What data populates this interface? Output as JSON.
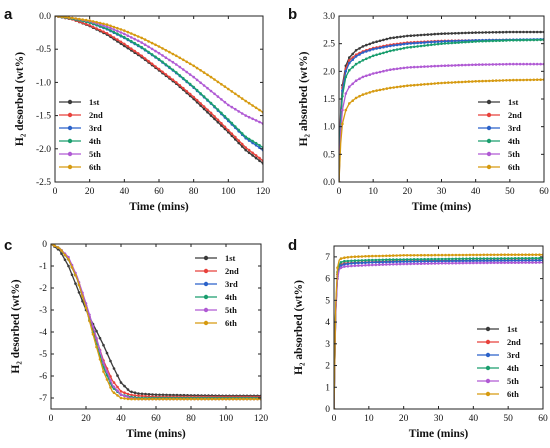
{
  "chart_data": [
    {
      "panel_label": "a",
      "type": "line",
      "xlabel": "Time (mins)",
      "ylabel": "H₂ desorbed (wt%)",
      "xlim": [
        0,
        120
      ],
      "ylim": [
        -2.5,
        0.0
      ],
      "xticks": [
        0,
        20,
        40,
        60,
        80,
        100,
        120
      ],
      "yticks": [
        0.0,
        -0.5,
        -1.0,
        -1.5,
        -2.0,
        -2.5
      ],
      "ytick_decimals": 1,
      "legend_position": "lower-left",
      "x": [
        0,
        10,
        20,
        30,
        40,
        50,
        60,
        70,
        80,
        90,
        100,
        110,
        120
      ],
      "series": [
        {
          "name": "1st",
          "color": "#3a3a3a",
          "values": [
            0,
            -0.05,
            -0.15,
            -0.28,
            -0.45,
            -0.62,
            -0.82,
            -1.02,
            -1.25,
            -1.5,
            -1.75,
            -2.02,
            -2.22
          ]
        },
        {
          "name": "2nd",
          "color": "#e8423c",
          "values": [
            0,
            -0.05,
            -0.14,
            -0.26,
            -0.42,
            -0.6,
            -0.8,
            -1.0,
            -1.22,
            -1.46,
            -1.72,
            -1.98,
            -2.18
          ]
        },
        {
          "name": "3rd",
          "color": "#2b62c9",
          "values": [
            0,
            -0.04,
            -0.1,
            -0.2,
            -0.33,
            -0.48,
            -0.66,
            -0.86,
            -1.08,
            -1.32,
            -1.58,
            -1.84,
            -2.02
          ]
        },
        {
          "name": "4th",
          "color": "#1a9e6e",
          "values": [
            0,
            -0.04,
            -0.1,
            -0.19,
            -0.32,
            -0.47,
            -0.65,
            -0.85,
            -1.07,
            -1.31,
            -1.56,
            -1.82,
            -1.98
          ]
        },
        {
          "name": "5th",
          "color": "#b05ad4",
          "values": [
            0,
            -0.03,
            -0.08,
            -0.16,
            -0.27,
            -0.4,
            -0.56,
            -0.73,
            -0.92,
            -1.13,
            -1.34,
            -1.5,
            -1.62
          ]
        },
        {
          "name": "6th",
          "color": "#d69a10",
          "values": [
            0,
            -0.03,
            -0.07,
            -0.13,
            -0.22,
            -0.33,
            -0.46,
            -0.6,
            -0.75,
            -0.92,
            -1.1,
            -1.28,
            -1.45
          ]
        }
      ]
    },
    {
      "panel_label": "b",
      "type": "line",
      "xlabel": "Time (mins)",
      "ylabel": "H₂ absorbed (wt%)",
      "xlim": [
        0,
        60
      ],
      "ylim": [
        0.0,
        3.0
      ],
      "xticks": [
        0,
        10,
        20,
        30,
        40,
        50,
        60
      ],
      "yticks": [
        0.0,
        0.5,
        1.0,
        1.5,
        2.0,
        2.5,
        3.0
      ],
      "ytick_decimals": 1,
      "legend_position": "lower-right",
      "x": [
        0,
        0.5,
        1,
        2,
        3,
        5,
        7,
        10,
        15,
        20,
        30,
        40,
        50,
        60
      ],
      "series": [
        {
          "name": "1st",
          "color": "#3a3a3a",
          "values": [
            0,
            1.3,
            1.75,
            2.1,
            2.25,
            2.38,
            2.45,
            2.52,
            2.6,
            2.64,
            2.68,
            2.7,
            2.71,
            2.71
          ]
        },
        {
          "name": "2nd",
          "color": "#e8423c",
          "values": [
            0,
            1.25,
            1.7,
            2.05,
            2.2,
            2.3,
            2.36,
            2.42,
            2.48,
            2.52,
            2.55,
            2.56,
            2.57,
            2.57
          ]
        },
        {
          "name": "3rd",
          "color": "#2b62c9",
          "values": [
            0,
            1.2,
            1.65,
            2.0,
            2.15,
            2.27,
            2.34,
            2.4,
            2.46,
            2.5,
            2.54,
            2.56,
            2.57,
            2.58
          ]
        },
        {
          "name": "4th",
          "color": "#1a9e6e",
          "values": [
            0,
            1.1,
            1.55,
            1.9,
            2.02,
            2.13,
            2.2,
            2.28,
            2.37,
            2.43,
            2.5,
            2.54,
            2.56,
            2.57
          ]
        },
        {
          "name": "5th",
          "color": "#b05ad4",
          "values": [
            0,
            0.9,
            1.3,
            1.6,
            1.72,
            1.83,
            1.9,
            1.96,
            2.03,
            2.07,
            2.1,
            2.12,
            2.13,
            2.13
          ]
        },
        {
          "name": "6th",
          "color": "#d69a10",
          "values": [
            0,
            0.7,
            1.05,
            1.3,
            1.42,
            1.52,
            1.58,
            1.64,
            1.7,
            1.74,
            1.79,
            1.82,
            1.84,
            1.85
          ]
        }
      ]
    },
    {
      "panel_label": "c",
      "type": "line",
      "xlabel": "Time (mins)",
      "ylabel": "H₂ desorbed (wt%)",
      "xlim": [
        0,
        120
      ],
      "ylim": [
        -7.5,
        0.0
      ],
      "xticks": [
        0,
        20,
        40,
        60,
        80,
        100,
        120
      ],
      "yticks": [
        0,
        -1,
        -2,
        -3,
        -4,
        -5,
        -6,
        -7
      ],
      "ytick_decimals": 0,
      "legend_position": "upper-right",
      "x": [
        0,
        5,
        10,
        15,
        20,
        25,
        30,
        35,
        40,
        45,
        50,
        60,
        80,
        100,
        120
      ],
      "series": [
        {
          "name": "1st",
          "color": "#3a3a3a",
          "values": [
            0,
            -0.3,
            -1.0,
            -2.0,
            -3.0,
            -3.8,
            -4.6,
            -5.5,
            -6.3,
            -6.7,
            -6.8,
            -6.85,
            -6.88,
            -6.9,
            -6.9
          ]
        },
        {
          "name": "2nd",
          "color": "#e8423c",
          "values": [
            0,
            -0.2,
            -0.7,
            -1.6,
            -2.8,
            -4.1,
            -5.3,
            -6.2,
            -6.7,
            -6.85,
            -6.9,
            -6.95,
            -6.95,
            -6.95,
            -6.95
          ]
        },
        {
          "name": "3rd",
          "color": "#2b62c9",
          "values": [
            0,
            -0.2,
            -0.7,
            -1.6,
            -2.9,
            -4.3,
            -5.6,
            -6.5,
            -6.85,
            -6.95,
            -7.0,
            -7.0,
            -7.0,
            -7.0,
            -7.0
          ]
        },
        {
          "name": "4th",
          "color": "#1a9e6e",
          "values": [
            0,
            -0.2,
            -0.7,
            -1.6,
            -2.9,
            -4.3,
            -5.6,
            -6.5,
            -6.85,
            -6.95,
            -7.0,
            -7.0,
            -7.0,
            -7.0,
            -7.0
          ]
        },
        {
          "name": "5th",
          "color": "#b05ad4",
          "values": [
            0,
            -0.2,
            -0.6,
            -1.5,
            -2.7,
            -4.0,
            -5.4,
            -6.4,
            -6.85,
            -7.0,
            -7.05,
            -7.05,
            -7.05,
            -7.05,
            -7.05
          ]
        },
        {
          "name": "6th",
          "color": "#d69a10",
          "values": [
            0,
            -0.2,
            -0.7,
            -1.6,
            -2.9,
            -4.4,
            -5.8,
            -6.7,
            -7.0,
            -7.05,
            -7.05,
            -7.05,
            -7.05,
            -7.05,
            -7.05
          ]
        }
      ]
    },
    {
      "panel_label": "d",
      "type": "line",
      "xlabel": "Time (mins)",
      "ylabel": "H₂ absorbed (wt%)",
      "xlim": [
        0,
        60
      ],
      "ylim": [
        0,
        7.5
      ],
      "xticks": [
        0,
        10,
        20,
        30,
        40,
        50,
        60
      ],
      "yticks": [
        0,
        1,
        2,
        3,
        4,
        5,
        6,
        7
      ],
      "ytick_decimals": 0,
      "legend_position": "lower-right",
      "x": [
        0,
        0.5,
        1,
        1.5,
        2,
        3,
        5,
        10,
        15,
        20,
        30,
        40,
        50,
        60
      ],
      "series": [
        {
          "name": "1st",
          "color": "#3a3a3a",
          "values": [
            0,
            4.5,
            6.2,
            6.55,
            6.65,
            6.7,
            6.72,
            6.75,
            6.78,
            6.8,
            6.82,
            6.83,
            6.84,
            6.85
          ]
        },
        {
          "name": "2nd",
          "color": "#e8423c",
          "values": [
            0,
            4.5,
            6.2,
            6.55,
            6.65,
            6.7,
            6.72,
            6.76,
            6.78,
            6.8,
            6.82,
            6.83,
            6.84,
            6.85
          ]
        },
        {
          "name": "3rd",
          "color": "#2b62c9",
          "values": [
            0,
            4.4,
            6.1,
            6.5,
            6.6,
            6.66,
            6.7,
            6.74,
            6.76,
            6.78,
            6.8,
            6.82,
            6.83,
            6.84
          ]
        },
        {
          "name": "4th",
          "color": "#1a9e6e",
          "values": [
            0,
            4.6,
            6.3,
            6.65,
            6.75,
            6.8,
            6.82,
            6.85,
            6.87,
            6.88,
            6.9,
            6.92,
            6.93,
            6.94
          ]
        },
        {
          "name": "5th",
          "color": "#b05ad4",
          "values": [
            0,
            4.3,
            6.0,
            6.4,
            6.5,
            6.55,
            6.58,
            6.62,
            6.65,
            6.67,
            6.7,
            6.72,
            6.73,
            6.74
          ]
        },
        {
          "name": "6th",
          "color": "#d69a10",
          "values": [
            0,
            4.8,
            6.5,
            6.85,
            6.92,
            6.96,
            7.0,
            7.03,
            7.05,
            7.07,
            7.08,
            7.09,
            7.1,
            7.1
          ]
        }
      ]
    }
  ]
}
